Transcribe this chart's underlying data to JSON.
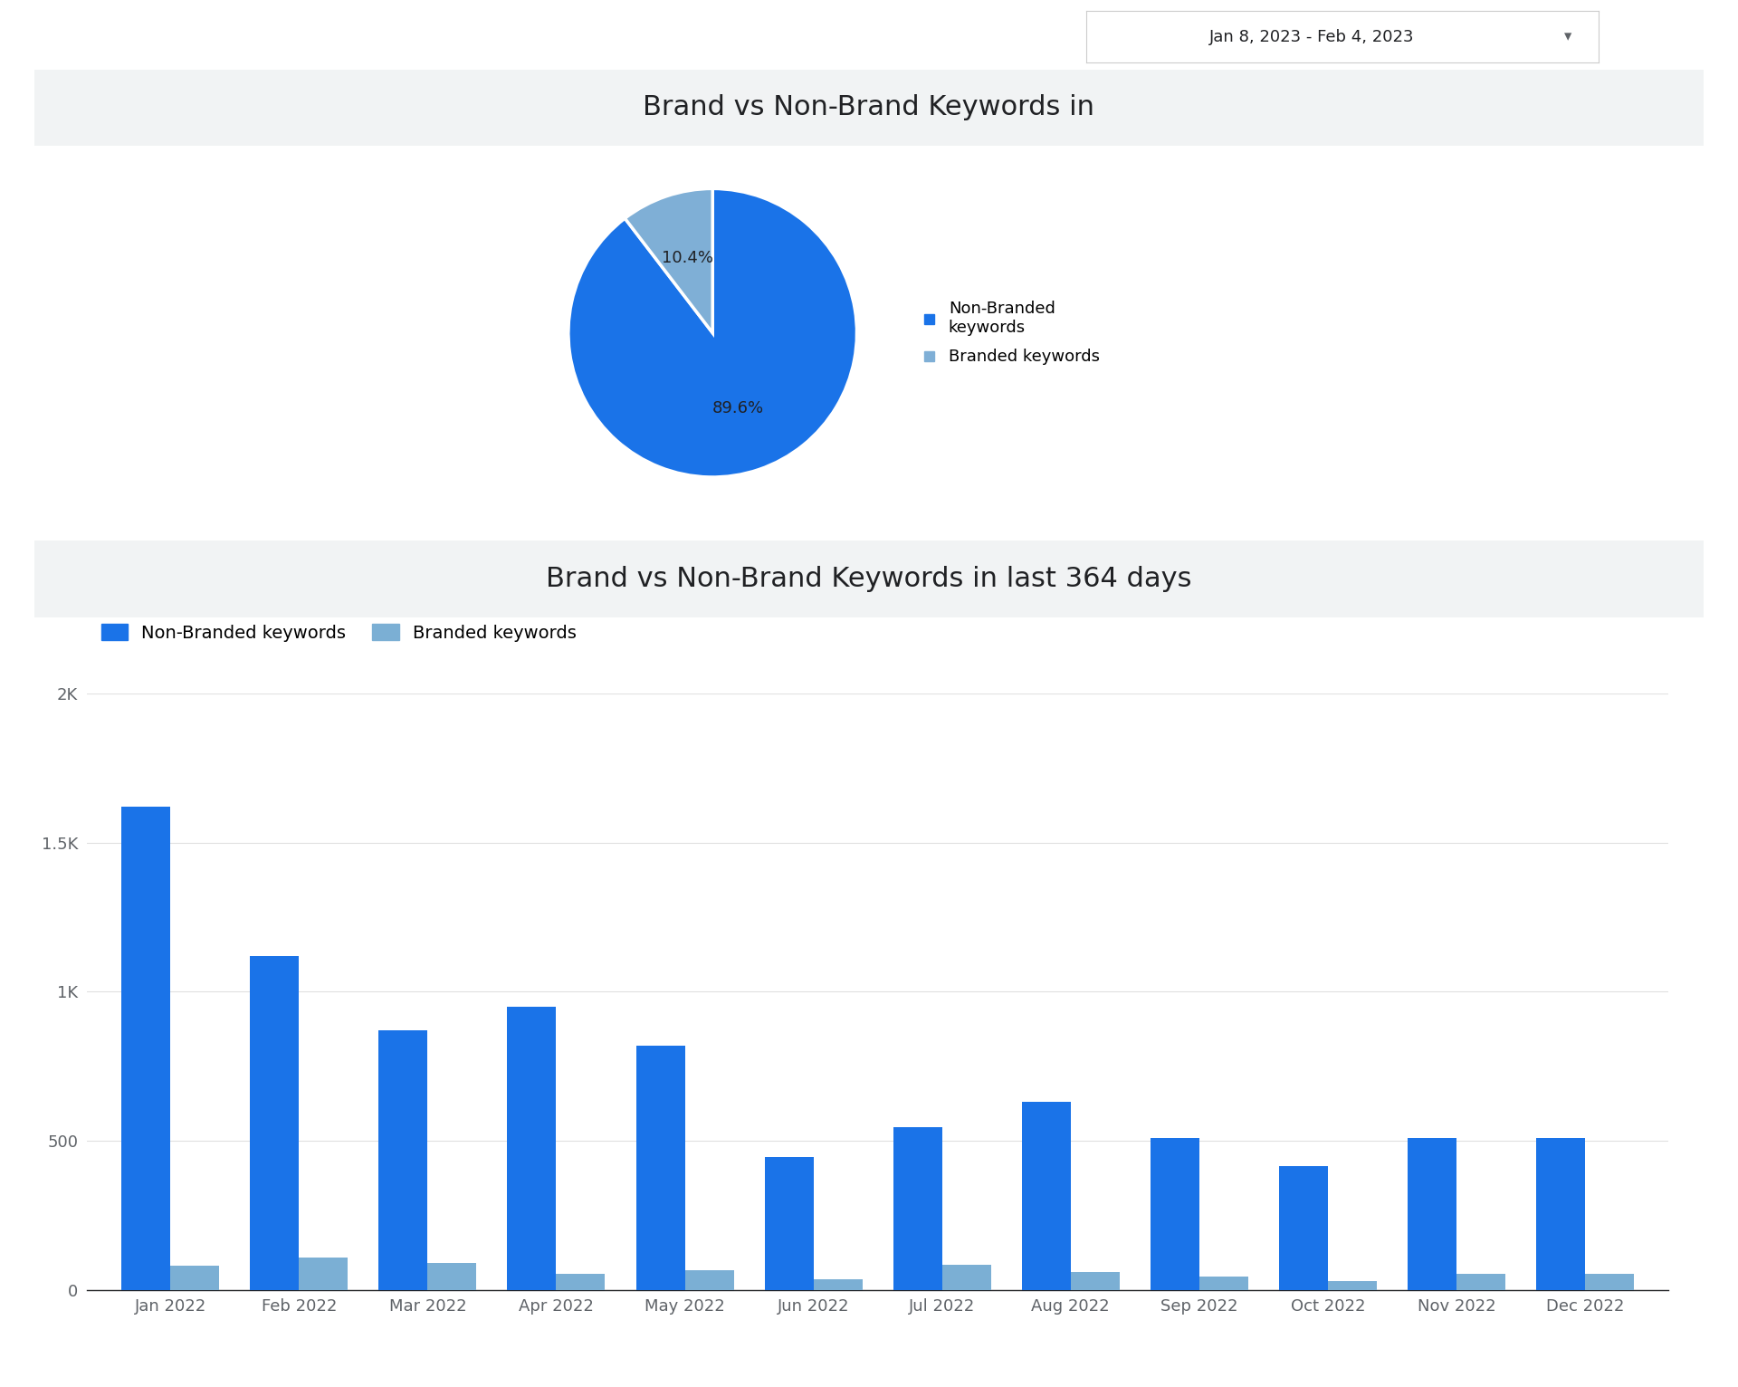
{
  "pie_title": "Brand vs Non-Brand Keywords in",
  "bar_title": "Brand vs Non-Brand Keywords in last 364 days",
  "date_range": "Jan 8, 2023 - Feb 4, 2023",
  "pie_values": [
    89.6,
    10.4
  ],
  "pie_legend_labels": [
    "Non-Branded\nkeywords",
    "Branded keywords"
  ],
  "pie_colors": [
    "#1a73e8",
    "#7fafd6"
  ],
  "pie_edge_color": "#ffffff",
  "months": [
    "Jan 2022",
    "Feb 2022",
    "Mar 2022",
    "Apr 2022",
    "May 2022",
    "Jun 2022",
    "Jul 2022",
    "Aug 2022",
    "Sep 2022",
    "Oct 2022",
    "Nov 2022",
    "Dec 2022"
  ],
  "non_branded": [
    1620,
    1120,
    870,
    950,
    820,
    445,
    545,
    630,
    510,
    415,
    510,
    510
  ],
  "branded": [
    80,
    110,
    90,
    55,
    65,
    35,
    85,
    60,
    45,
    30,
    55,
    55
  ],
  "bar_color_non_branded": "#1a73e8",
  "bar_color_branded": "#7bafd4",
  "bar_legend_labels": [
    "Non-Branded keywords",
    "Branded keywords"
  ],
  "yticks": [
    0,
    500,
    1000,
    1500,
    2000
  ],
  "ytick_labels": [
    "0",
    "500",
    "1K",
    "1.5K",
    "2K"
  ],
  "background_color": "#ffffff",
  "title_bg_color": "#f1f3f4",
  "title_fontsize": 22,
  "legend_fontsize": 14,
  "tick_fontsize": 13,
  "label_fontsize": 13
}
